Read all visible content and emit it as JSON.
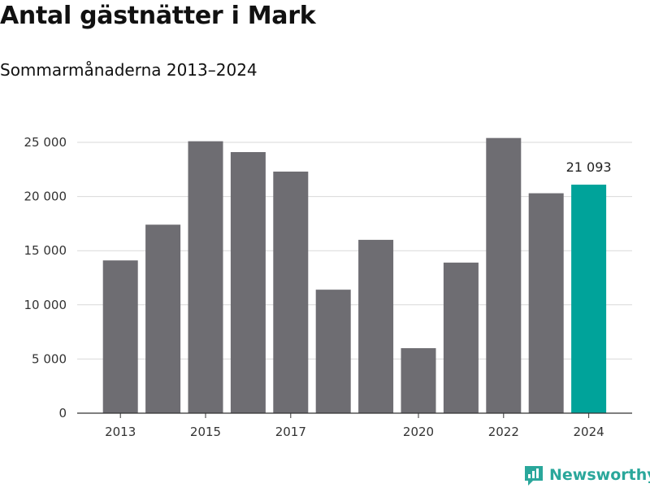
{
  "chart_data": {
    "type": "bar",
    "title": "Antal gästnätter i Mark",
    "subtitle": "Sommarmånaderna 2013–2024",
    "categories": [
      "2013",
      "2014",
      "2015",
      "2016",
      "2017",
      "2018",
      "2019",
      "2020",
      "2021",
      "2022",
      "2023",
      "2024"
    ],
    "values": [
      14100,
      17400,
      25100,
      24100,
      22300,
      11400,
      16000,
      6000,
      13900,
      25400,
      20300,
      21093
    ],
    "x_tick_labels": [
      "2013",
      "2015",
      "2017",
      "2020",
      "2022",
      "2024"
    ],
    "y_ticks": [
      0,
      5000,
      10000,
      15000,
      20000,
      25000
    ],
    "y_tick_labels": [
      "0",
      "5 000",
      "10 000",
      "15 000",
      "20 000",
      "25 000"
    ],
    "ylim": [
      0,
      25000
    ],
    "grid": true,
    "highlight": {
      "category": "2024",
      "label": "21 093"
    },
    "colors": {
      "bar": "#6e6d72",
      "highlight": "#00a39a",
      "grid": "#d9d9d9",
      "axis": "#333333"
    }
  },
  "branding": {
    "name": "Newsworthy",
    "color": "#2aa79b",
    "icon": "newsworthy-logo-icon"
  }
}
